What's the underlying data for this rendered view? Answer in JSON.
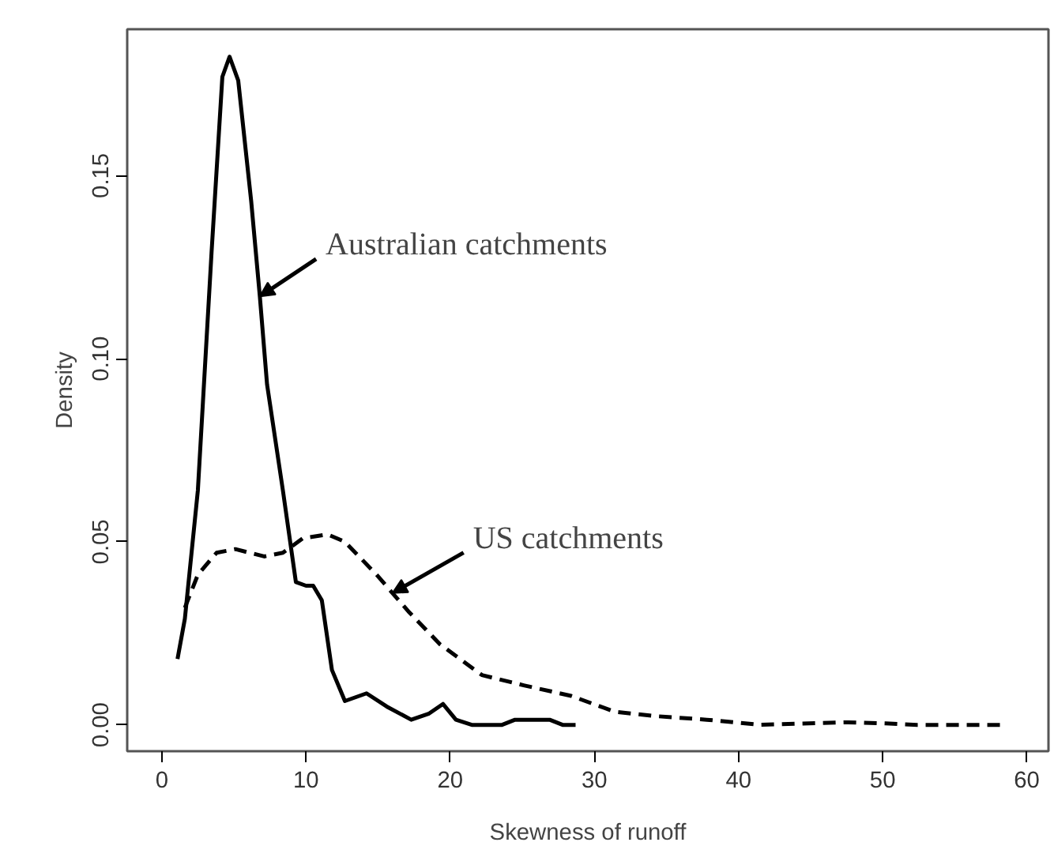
{
  "chart_data": {
    "type": "line",
    "xlabel": "Skewness of runoff",
    "ylabel": "Density",
    "xlim": [
      -2.4,
      61.5
    ],
    "ylim": [
      -0.0072,
      0.19
    ],
    "xticks": [
      0,
      10,
      20,
      30,
      40,
      50,
      60
    ],
    "yticks": [
      {
        "value": 0,
        "label": "0.00"
      },
      {
        "value": 0.05,
        "label": "0.05"
      },
      {
        "value": 0.1,
        "label": "0.10"
      },
      {
        "value": 0.15,
        "label": "0.15"
      }
    ],
    "grid": false,
    "marker": "none",
    "series": [
      {
        "color": "#000000",
        "line_style": "solid",
        "x": [
          1.09,
          1.6,
          2.5,
          3.45,
          4.2,
          4.7,
          5.3,
          6.2,
          6.8,
          7.3,
          8.4,
          9.3,
          10.0,
          10.5,
          11.1,
          11.8,
          12.7,
          14.2,
          15.6,
          17.3,
          18.5,
          19.5,
          20.4,
          21.5,
          23.6,
          24.5,
          26.9,
          27.8,
          28.7
        ],
        "values": [
          0.018,
          0.029,
          0.064,
          0.129,
          0.177,
          0.1825,
          0.176,
          0.143,
          0.117,
          0.093,
          0.064,
          0.039,
          0.038,
          0.038,
          0.034,
          0.015,
          0.0065,
          0.0086,
          0.005,
          0.0014,
          0.003,
          0.0057,
          0.0014,
          0,
          0,
          0.0014,
          0.0014,
          0,
          0
        ]
      },
      {
        "color": "#000000",
        "line_style": "dashed",
        "x": [
          1.6,
          2.5,
          3.8,
          5.1,
          7.1,
          8.4,
          9.8,
          11.5,
          12.7,
          14.9,
          16.0,
          17.1,
          19.3,
          22.2,
          25.1,
          28.4,
          31.4,
          34.2,
          37.8,
          41.5,
          47.6,
          50.2,
          52.4,
          58.4
        ],
        "values": [
          0.032,
          0.041,
          0.047,
          0.048,
          0.046,
          0.047,
          0.051,
          0.052,
          0.05,
          0.041,
          0.036,
          0.031,
          0.022,
          0.0136,
          0.0108,
          0.0079,
          0.0036,
          0.0024,
          0.0014,
          0,
          0.0007,
          0.0004,
          0,
          0
        ]
      }
    ],
    "annotations": [
      {
        "text": "Australian catchments",
        "x": 6.8,
        "y": 0.117
      },
      {
        "text": "US catchments",
        "x": 16.0,
        "y": 0.036
      }
    ]
  }
}
